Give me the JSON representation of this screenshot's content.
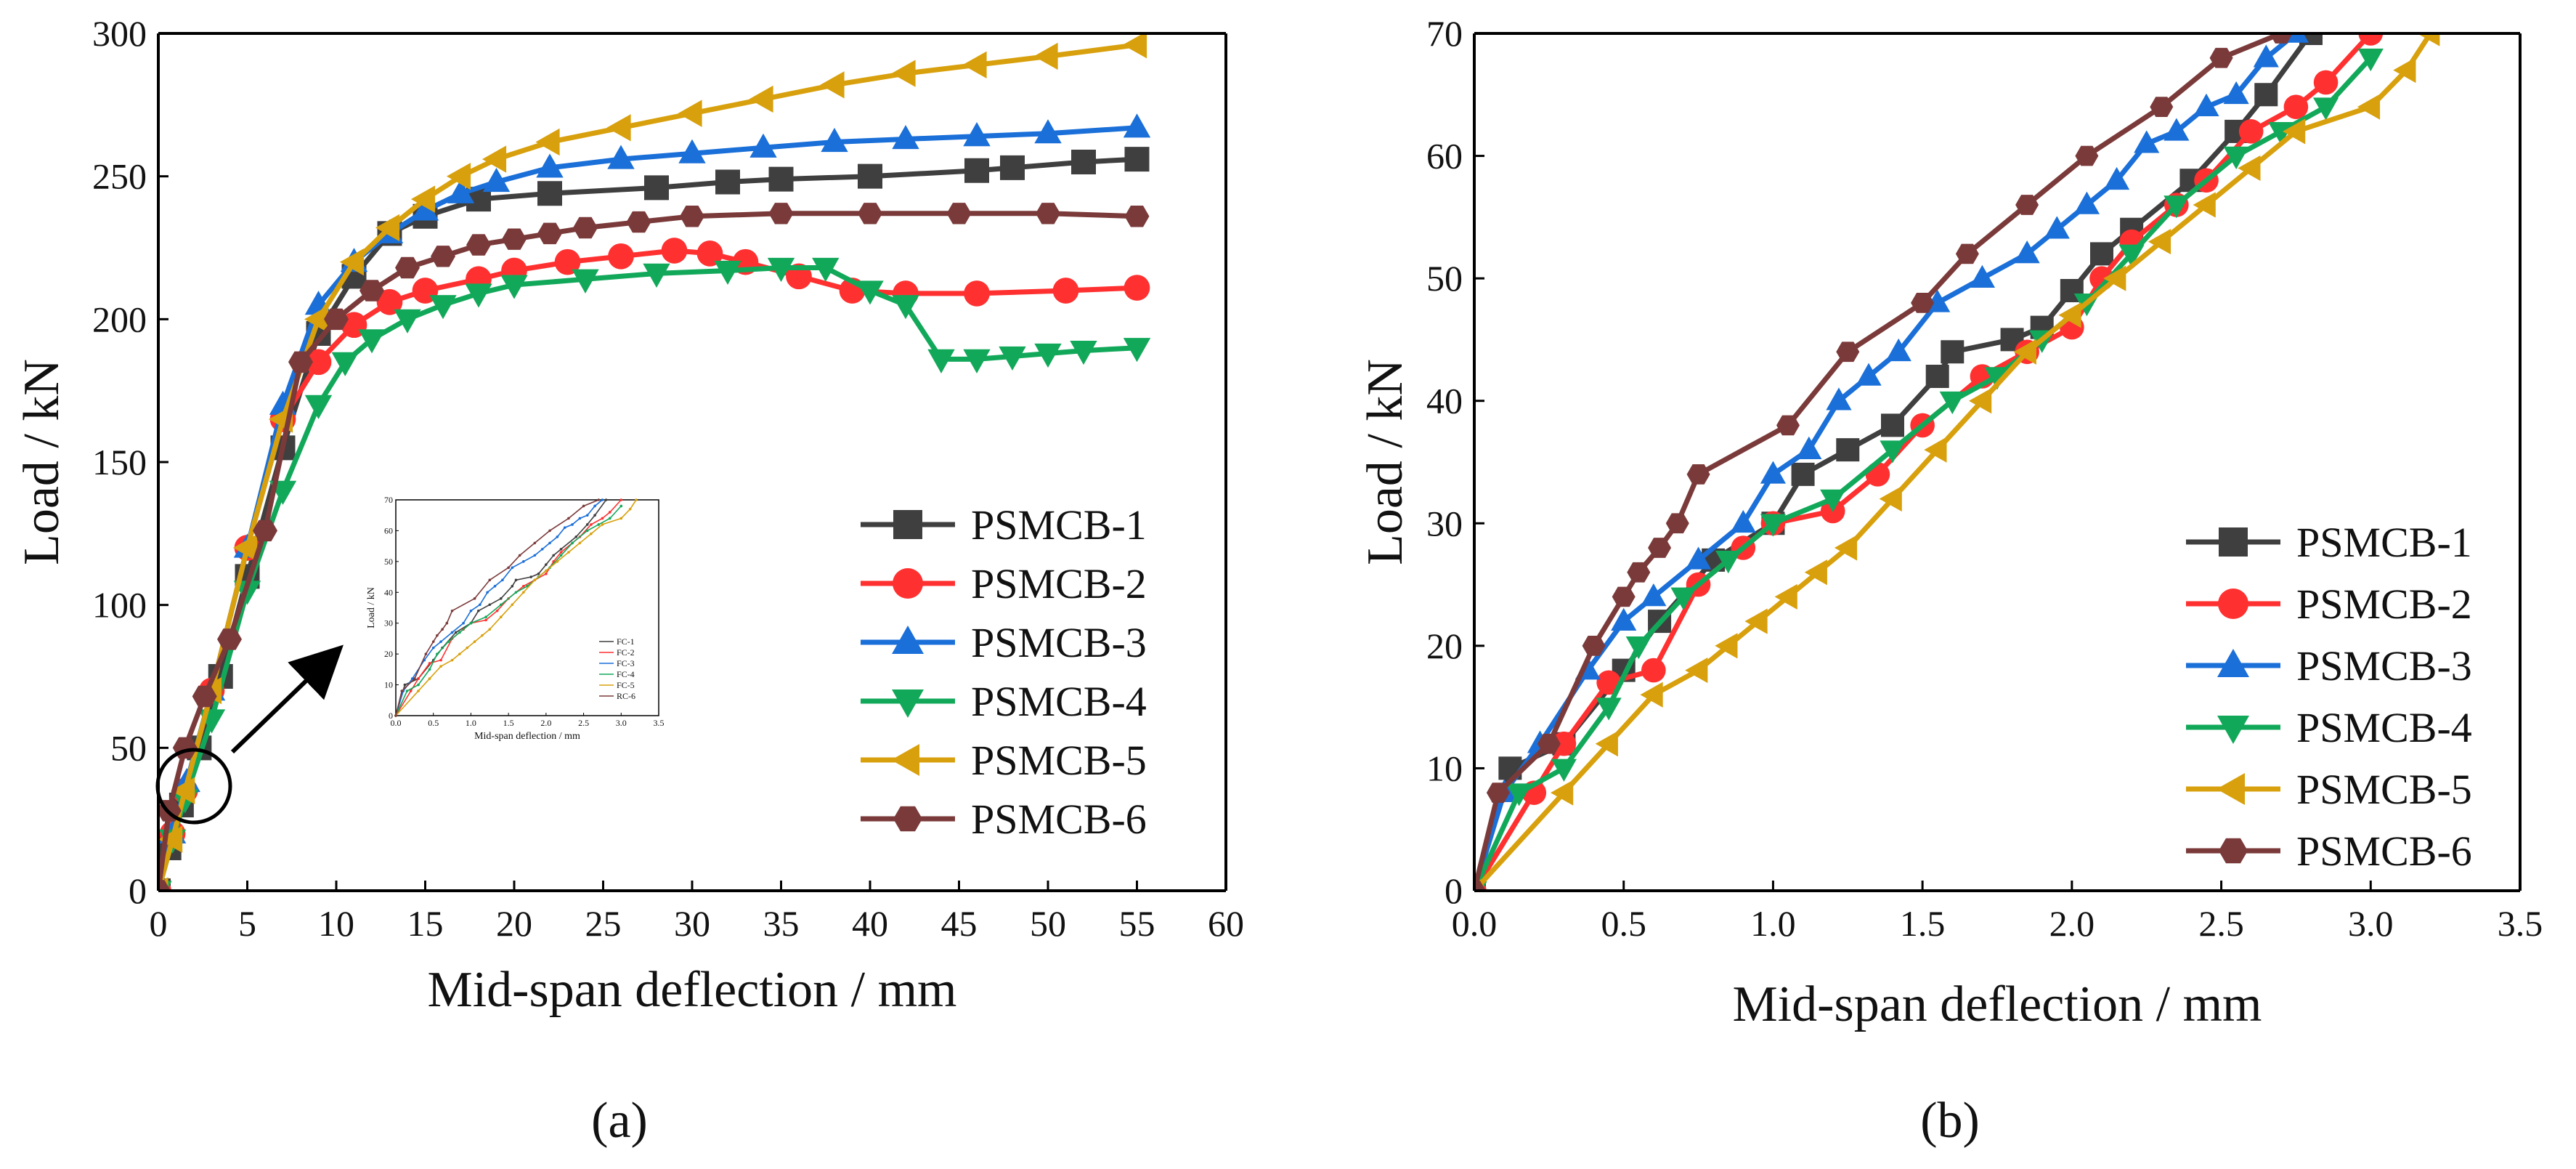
{
  "colors": {
    "PSMCB-1": "#3f3f3f",
    "PSMCB-2": "#ff3030",
    "PSMCB-3": "#1a6fd8",
    "PSMCB-4": "#12a85a",
    "PSMCB-5": "#d8a00c",
    "PSMCB-6": "#7b3a3a"
  },
  "markers": {
    "PSMCB-1": "square",
    "PSMCB-2": "circle",
    "PSMCB-3": "triangle-up",
    "PSMCB-4": "triangle-down",
    "PSMCB-5": "triangle-left",
    "PSMCB-6": "hexagon"
  },
  "chart_data": [
    {
      "panel_label": "(a)",
      "type": "line",
      "title": "",
      "xlabel": "Mid-span deflection / mm",
      "ylabel": "Load / kN",
      "xlim": [
        0,
        60
      ],
      "ylim": [
        0,
        300
      ],
      "xticks": [
        0,
        5,
        10,
        15,
        20,
        25,
        30,
        35,
        40,
        45,
        50,
        55,
        60
      ],
      "yticks": [
        0,
        50,
        100,
        150,
        200,
        250,
        300
      ],
      "legend_position": "bottom-right",
      "annotation": "circled origin region with arrow pointing to inset",
      "series": [
        {
          "name": "PSMCB-1",
          "x": [
            0,
            0.6,
            1.3,
            2.3,
            3.5,
            5,
            7,
            9,
            11,
            13,
            15,
            18,
            22,
            28,
            32,
            35,
            40,
            46,
            48,
            52,
            55
          ],
          "y": [
            0,
            15,
            30,
            50,
            75,
            110,
            155,
            195,
            215,
            230,
            236,
            242,
            244,
            246,
            248,
            249,
            250,
            252,
            253,
            255,
            256
          ]
        },
        {
          "name": "PSMCB-2",
          "x": [
            0,
            0.8,
            1.5,
            3,
            5,
            7,
            9,
            11,
            13,
            15,
            18,
            20,
            23,
            26,
            29,
            31,
            33,
            36,
            39,
            42,
            46,
            51,
            55
          ],
          "y": [
            0,
            20,
            35,
            70,
            120,
            165,
            185,
            198,
            206,
            210,
            214,
            217,
            220,
            222,
            224,
            223,
            220,
            215,
            210,
            209,
            209,
            210,
            211
          ]
        },
        {
          "name": "PSMCB-3",
          "x": [
            0,
            0.8,
            1.6,
            3,
            5,
            7,
            9,
            11,
            13,
            15,
            17,
            19,
            22,
            26,
            30,
            34,
            38,
            42,
            46,
            50,
            55
          ],
          "y": [
            0,
            20,
            38,
            70,
            120,
            170,
            205,
            220,
            230,
            238,
            244,
            248,
            253,
            256,
            258,
            260,
            262,
            263,
            264,
            265,
            267
          ]
        },
        {
          "name": "PSMCB-4",
          "x": [
            0,
            0.8,
            1.5,
            3,
            5,
            7,
            9,
            10.5,
            12,
            14,
            16,
            18,
            20,
            24,
            28,
            32,
            35,
            37.5,
            40,
            42,
            44,
            46,
            48,
            50,
            52,
            55
          ],
          "y": [
            0,
            18,
            32,
            60,
            105,
            140,
            170,
            185,
            193,
            200,
            205,
            209,
            212,
            214,
            216,
            217,
            218,
            218,
            210,
            205,
            186,
            186,
            187,
            188,
            189,
            190
          ]
        },
        {
          "name": "PSMCB-5",
          "x": [
            0,
            0.8,
            1.5,
            3,
            5,
            7,
            9,
            11,
            13,
            15,
            17,
            19,
            22,
            26,
            30,
            34,
            38,
            42,
            46,
            50,
            55
          ],
          "y": [
            0,
            18,
            35,
            70,
            120,
            165,
            200,
            220,
            232,
            242,
            250,
            256,
            262,
            267,
            272,
            277,
            282,
            286,
            289,
            292,
            296
          ]
        },
        {
          "name": "PSMCB-6",
          "x": [
            0,
            0.6,
            1.5,
            2.6,
            4,
            6,
            8,
            10,
            12,
            14,
            16,
            18,
            20,
            22,
            24,
            27,
            30,
            35,
            40,
            45,
            50,
            55
          ],
          "y": [
            0,
            28,
            50,
            68,
            88,
            126,
            185,
            200,
            210,
            218,
            222,
            226,
            228,
            230,
            232,
            234,
            236,
            237,
            237,
            237,
            237,
            236
          ]
        }
      ],
      "inset": {
        "xlabel": "Mid-span deflection / mm",
        "ylabel": "Load / kN",
        "xlim": [
          0,
          3.5
        ],
        "ylim": [
          0,
          70
        ],
        "xticks": [
          "0.0",
          "0.5",
          "1.0",
          "1.5",
          "2.0",
          "2.5",
          "3.0",
          "3.5"
        ],
        "yticks": [
          "0",
          "10",
          "20",
          "30",
          "40",
          "50",
          "60",
          "70"
        ],
        "legend": [
          "FC-1",
          "FC-2",
          "FC-3",
          "FC-4",
          "FC-5",
          "RC-6"
        ]
      }
    },
    {
      "panel_label": "(b)",
      "type": "line",
      "title": "",
      "xlabel": "Mid-span deflection / mm",
      "ylabel": "Load / kN",
      "xlim": [
        0,
        3.5
      ],
      "ylim": [
        0,
        70
      ],
      "xticks": [
        0.0,
        0.5,
        1.0,
        1.5,
        2.0,
        2.5,
        3.0,
        3.5
      ],
      "yticks": [
        0,
        10,
        20,
        30,
        40,
        50,
        60,
        70
      ],
      "legend_position": "bottom-right",
      "series": [
        {
          "name": "PSMCB-1",
          "x": [
            0,
            0.12,
            0.3,
            0.5,
            0.62,
            0.8,
            1.0,
            1.1,
            1.25,
            1.4,
            1.55,
            1.6,
            1.8,
            1.9,
            2.0,
            2.1,
            2.2,
            2.4,
            2.55,
            2.65,
            2.8
          ],
          "y": [
            0,
            10,
            12,
            18,
            22,
            27,
            30,
            34,
            36,
            38,
            42,
            44,
            45,
            46,
            49,
            52,
            54,
            58,
            62,
            65,
            70
          ]
        },
        {
          "name": "PSMCB-2",
          "x": [
            0,
            0.2,
            0.3,
            0.45,
            0.6,
            0.75,
            0.9,
            1.0,
            1.2,
            1.35,
            1.5,
            1.7,
            1.85,
            2.0,
            2.1,
            2.2,
            2.35,
            2.45,
            2.6,
            2.75,
            2.85,
            3.0
          ],
          "y": [
            0,
            8,
            12,
            17,
            18,
            25,
            28,
            30,
            31,
            34,
            38,
            42,
            44,
            46,
            50,
            53,
            56,
            58,
            62,
            64,
            66,
            70
          ]
        },
        {
          "name": "PSMCB-3",
          "x": [
            0,
            0.1,
            0.22,
            0.38,
            0.5,
            0.6,
            0.75,
            0.9,
            1.0,
            1.12,
            1.22,
            1.32,
            1.42,
            1.55,
            1.7,
            1.85,
            1.95,
            2.05,
            2.15,
            2.25,
            2.35,
            2.45,
            2.55,
            2.65,
            2.75
          ],
          "y": [
            0,
            8,
            12,
            18,
            22,
            24,
            27,
            30,
            34,
            36,
            40,
            42,
            44,
            48,
            50,
            52,
            54,
            56,
            58,
            61,
            62,
            64,
            65,
            68,
            70
          ]
        },
        {
          "name": "PSMCB-4",
          "x": [
            0,
            0.15,
            0.3,
            0.45,
            0.55,
            0.7,
            0.85,
            1.0,
            1.2,
            1.4,
            1.6,
            1.75,
            1.9,
            2.05,
            2.2,
            2.35,
            2.55,
            2.7,
            2.85,
            3.0
          ],
          "y": [
            0,
            8,
            10,
            15,
            20,
            24,
            27,
            30,
            32,
            36,
            40,
            42,
            45,
            48,
            52,
            56,
            60,
            62,
            64,
            68
          ]
        },
        {
          "name": "PSMCB-5",
          "x": [
            0,
            0.3,
            0.45,
            0.6,
            0.75,
            0.85,
            0.95,
            1.05,
            1.15,
            1.25,
            1.4,
            1.55,
            1.7,
            1.85,
            2.0,
            2.15,
            2.3,
            2.45,
            2.6,
            2.75,
            3.0,
            3.12,
            3.2
          ],
          "y": [
            0,
            8,
            12,
            16,
            18,
            20,
            22,
            24,
            26,
            28,
            32,
            36,
            40,
            44,
            47,
            50,
            53,
            56,
            59,
            62,
            64,
            67,
            70
          ]
        },
        {
          "name": "PSMCB-6",
          "x": [
            0,
            0.08,
            0.25,
            0.4,
            0.5,
            0.55,
            0.62,
            0.68,
            0.75,
            1.05,
            1.25,
            1.5,
            1.65,
            1.85,
            2.05,
            2.3,
            2.5,
            2.7
          ],
          "y": [
            0,
            8,
            12,
            20,
            24,
            26,
            28,
            30,
            34,
            38,
            44,
            48,
            52,
            56,
            60,
            64,
            68,
            70
          ]
        }
      ]
    }
  ]
}
